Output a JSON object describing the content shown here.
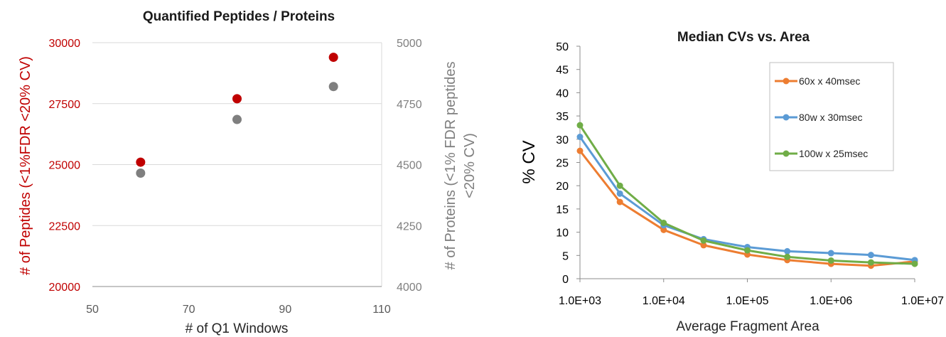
{
  "chart_data": [
    {
      "type": "scatter",
      "title": "Quantified Peptides / Proteins",
      "xlabel": "# of Q1 Windows",
      "ylabel": "# of Peptides (<1%FDR <20% CV)",
      "y2label_lines": [
        "# of Proteins (<1% FDR peptides",
        "<20% CV)"
      ],
      "xlim": [
        50,
        110
      ],
      "ylim": [
        20000,
        30000
      ],
      "y2lim": [
        4000,
        5000
      ],
      "x_ticks": [
        "50",
        "70",
        "90",
        "110"
      ],
      "y_ticks": [
        "20000",
        "22500",
        "25000",
        "27500",
        "30000"
      ],
      "y2_ticks": [
        "4000",
        "4250",
        "4500",
        "4750",
        "5000"
      ],
      "grid": true,
      "series": [
        {
          "axis": "left",
          "color": "#c00000",
          "points": [
            [
              60,
              25100
            ],
            [
              80,
              27700
            ],
            [
              100,
              29400
            ]
          ]
        },
        {
          "axis": "right",
          "color": "#7f7f7f",
          "points": [
            [
              60,
              4465
            ],
            [
              80,
              4685
            ],
            [
              100,
              4820
            ]
          ]
        }
      ]
    },
    {
      "type": "line",
      "title": "Median CVs vs. Area",
      "xlabel": "Average Fragment Area",
      "ylabel": "% CV",
      "x_scale": "log",
      "xlim": [
        1000,
        10000000
      ],
      "ylim": [
        0,
        50
      ],
      "x_ticks": [
        "1.0E+03",
        "1.0E+04",
        "1.0E+05",
        "1.0E+06",
        "1.0E+07"
      ],
      "y_ticks": [
        "0",
        "5",
        "10",
        "15",
        "20",
        "25",
        "30",
        "35",
        "40",
        "45",
        "50"
      ],
      "grid": false,
      "legend": "top-right",
      "x": [
        1000,
        3000,
        10000,
        30000,
        100000,
        300000,
        1000000,
        3000000,
        10000000
      ],
      "series": [
        {
          "name": "60x x 40msec",
          "color": "#ed7d31",
          "values": [
            27.5,
            16.5,
            10.5,
            7.2,
            5.2,
            4.0,
            3.2,
            2.8,
            3.7
          ]
        },
        {
          "name": "80w x 30msec",
          "color": "#5b9bd5",
          "values": [
            30.5,
            18.3,
            11.5,
            8.5,
            6.8,
            5.9,
            5.5,
            5.1,
            4.0
          ]
        },
        {
          "name": "100w x 25msec",
          "color": "#70ad47",
          "values": [
            33.0,
            20.0,
            12.0,
            8.2,
            6.1,
            4.7,
            3.9,
            3.5,
            3.2
          ]
        }
      ]
    }
  ]
}
